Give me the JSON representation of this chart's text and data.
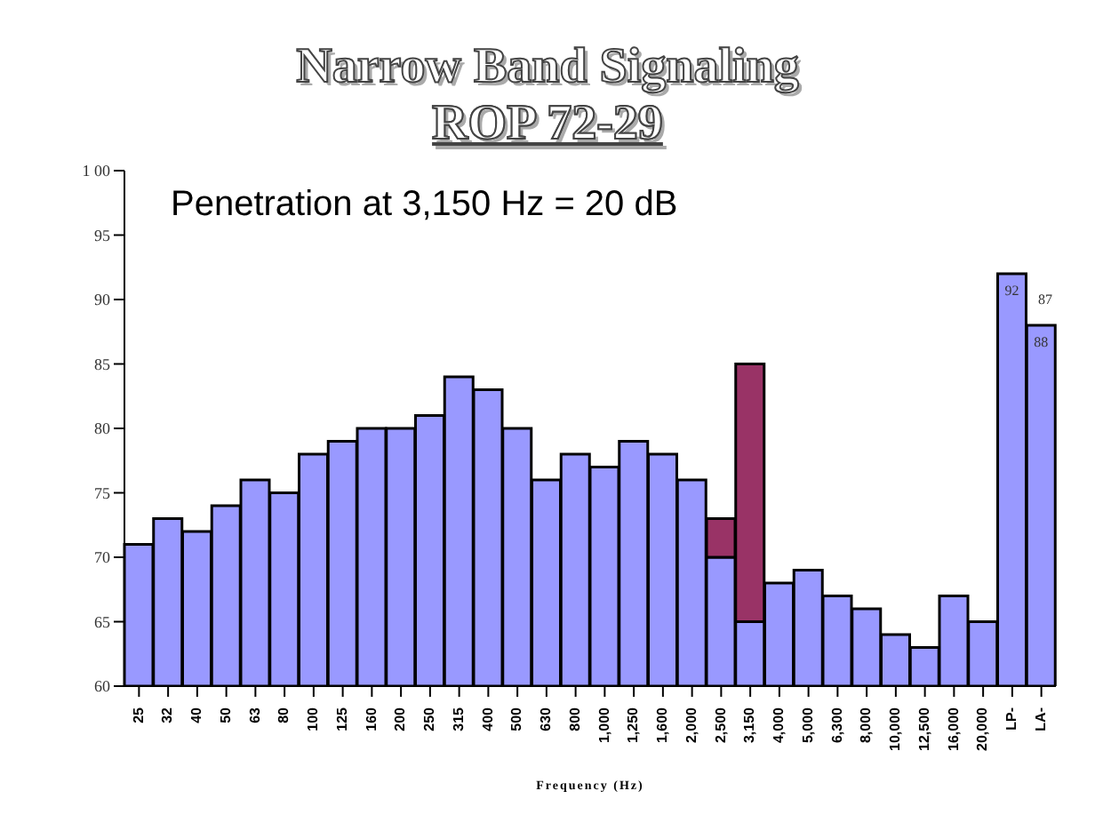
{
  "chart_data": {
    "type": "bar",
    "title": "Narrow Band Signaling",
    "subtitle": "ROP 72-29",
    "xlabel": "Frequency (Hz)",
    "categories": [
      "25",
      "32",
      "40",
      "50",
      "63",
      "80",
      "100",
      "125",
      "160",
      "200",
      "250",
      "315",
      "400",
      "500",
      "630",
      "800",
      "1,000",
      "1,250",
      "1,600",
      "2,000",
      "2,500",
      "3,150",
      "4,000",
      "5,000",
      "6,300",
      "8,000",
      "10,000",
      "12,500",
      "16,000",
      "20,000",
      "LP-",
      "LA-"
    ],
    "series": [
      {
        "color": "#9999ff",
        "values": [
          71,
          73,
          72,
          74,
          76,
          75,
          78,
          79,
          80,
          80,
          81,
          84,
          83,
          80,
          76,
          78,
          77,
          79,
          78,
          76,
          70,
          65,
          68,
          69,
          67,
          66,
          64,
          63,
          67,
          65,
          92,
          88
        ],
        "value_labels": [
          null,
          null,
          null,
          null,
          null,
          null,
          null,
          null,
          null,
          null,
          null,
          null,
          null,
          null,
          null,
          null,
          null,
          null,
          null,
          null,
          null,
          null,
          null,
          null,
          null,
          null,
          null,
          null,
          null,
          null,
          "92",
          "88"
        ]
      },
      {
        "color": "#993366",
        "values": [
          null,
          null,
          null,
          null,
          null,
          null,
          null,
          null,
          null,
          null,
          null,
          null,
          null,
          null,
          null,
          null,
          null,
          null,
          null,
          null,
          3,
          20,
          null,
          null,
          null,
          null,
          null,
          null,
          null,
          null,
          null,
          null
        ],
        "base": [
          null,
          null,
          null,
          null,
          null,
          null,
          null,
          null,
          null,
          null,
          null,
          null,
          null,
          null,
          null,
          null,
          null,
          null,
          null,
          null,
          70,
          65,
          null,
          null,
          null,
          null,
          null,
          null,
          null,
          null,
          null,
          null
        ]
      }
    ],
    "ylim": [
      60,
      100
    ],
    "yticks": [
      60,
      65,
      70,
      75,
      80,
      85,
      90,
      95,
      {
        "value": 100,
        "label": "1 00"
      }
    ],
    "annotations": [
      "Penetration at 3,150 Hz = 20 dB",
      "87"
    ]
  }
}
